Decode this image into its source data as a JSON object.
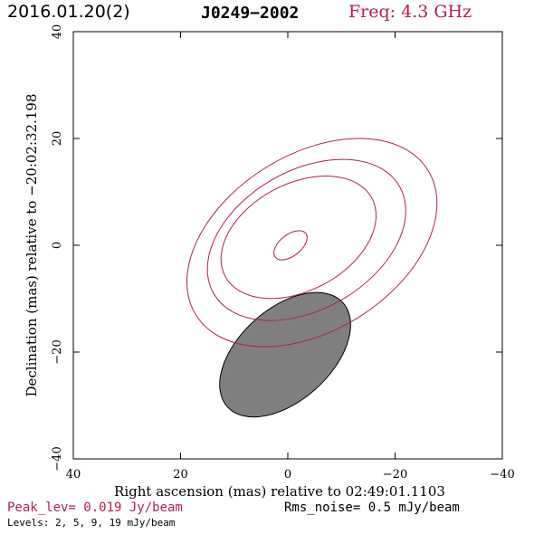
{
  "header": {
    "date": "2016.01.20(2)",
    "source": "J0249−2002",
    "freq": "Freq: 4.3 GHz"
  },
  "colors": {
    "contour": "#b5204b",
    "beam_fill": "#7f7f7f",
    "accent": "#b5204b"
  },
  "chart_data": {
    "type": "contour",
    "xlabel": "Right ascension (mas) relative to 02:49:01.1103",
    "ylabel": "Declination (mas) relative to −20:02:32.198",
    "xlim": [
      40,
      -40
    ],
    "ylim": [
      -40,
      40
    ],
    "x_ticks": [
      40,
      20,
      0,
      -20,
      -40
    ],
    "y_ticks": [
      -40,
      -20,
      0,
      20,
      40
    ],
    "x_tick_labels": [
      "40",
      "20",
      "0",
      "−20",
      "−40"
    ],
    "y_tick_labels": [
      "−40",
      "−20",
      "0",
      "20",
      "40"
    ],
    "contours": [
      {
        "level": 2,
        "cx": -4.5,
        "cy": 0.5,
        "a": 25.5,
        "b": 16.5,
        "pa": -32
      },
      {
        "level": 5,
        "cx": -3.5,
        "cy": 1.0,
        "a": 20.0,
        "b": 13.0,
        "pa": -30
      },
      {
        "level": 9,
        "cx": -2.0,
        "cy": 1.5,
        "a": 15.5,
        "b": 10.0,
        "pa": -28
      },
      {
        "level": 19,
        "cx": -0.5,
        "cy": 0.0,
        "a": 3.6,
        "b": 2.0,
        "pa": -38
      }
    ],
    "beam": {
      "cx": 0.5,
      "cy": -20.5,
      "a": 14.5,
      "b": 8.6,
      "pa": -42
    },
    "peak_label": "Peak_lev=  0.019 Jy/beam",
    "rms_label": "Rms_noise=  0.5 mJy/beam",
    "levels_label": "Levels:  2,   5,   9,  19 mJy/beam"
  }
}
